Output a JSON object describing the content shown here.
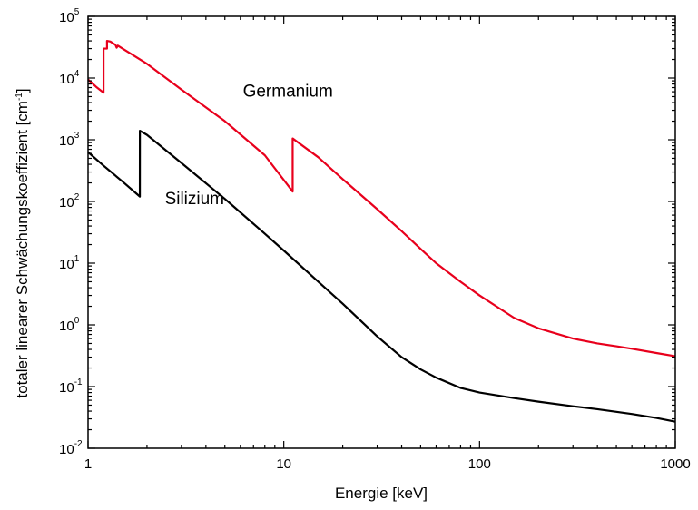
{
  "chart_data": {
    "type": "line",
    "xlabel": "Energie [keV]",
    "ylabel": "totaler linearer Schwächungskoeffizient [cm",
    "ylabel_sup": "-1",
    "ylabel_suffix": "]",
    "x_scale": "log",
    "y_scale": "log",
    "xlim": [
      1,
      1000
    ],
    "ylim": [
      0.01,
      100000
    ],
    "x_ticks": [
      {
        "value": 1,
        "label": "1"
      },
      {
        "value": 10,
        "label": "10"
      },
      {
        "value": 100,
        "label": "100"
      },
      {
        "value": 1000,
        "label": "1000"
      }
    ],
    "y_ticks": [
      {
        "value": 0.01,
        "base": "10",
        "exp": "-2"
      },
      {
        "value": 0.1,
        "base": "10",
        "exp": "-1"
      },
      {
        "value": 1,
        "base": "10",
        "exp": "0"
      },
      {
        "value": 10,
        "base": "10",
        "exp": "1"
      },
      {
        "value": 100,
        "base": "10",
        "exp": "2"
      },
      {
        "value": 1000,
        "base": "10",
        "exp": "3"
      },
      {
        "value": 10000,
        "base": "10",
        "exp": "4"
      },
      {
        "value": 100000,
        "base": "10",
        "exp": "5"
      }
    ],
    "grid": false,
    "legend": "none",
    "series": [
      {
        "name": "Germanium",
        "color": "#e8001c",
        "points": [
          [
            1,
            9500
          ],
          [
            1.1,
            7200
          ],
          [
            1.2,
            5800
          ],
          [
            1.2,
            30000
          ],
          [
            1.25,
            30000
          ],
          [
            1.25,
            40000
          ],
          [
            1.3,
            39000
          ],
          [
            1.38,
            34500
          ],
          [
            1.4,
            31000
          ],
          [
            1.42,
            33500
          ],
          [
            1.5,
            30000
          ],
          [
            2,
            17000
          ],
          [
            3,
            6500
          ],
          [
            5,
            2000
          ],
          [
            8,
            560
          ],
          [
            11.1,
            145
          ],
          [
            11.1,
            1050
          ],
          [
            15,
            520
          ],
          [
            20,
            230
          ],
          [
            30,
            75
          ],
          [
            40,
            33
          ],
          [
            50,
            17
          ],
          [
            60,
            10
          ],
          [
            80,
            5
          ],
          [
            100,
            3
          ],
          [
            150,
            1.3
          ],
          [
            200,
            0.88
          ],
          [
            300,
            0.6
          ],
          [
            400,
            0.5
          ],
          [
            500,
            0.45
          ],
          [
            600,
            0.41
          ],
          [
            800,
            0.35
          ],
          [
            1000,
            0.31
          ]
        ]
      },
      {
        "name": "Silizium",
        "color": "#000000",
        "points": [
          [
            1,
            630
          ],
          [
            1.2,
            380
          ],
          [
            1.5,
            210
          ],
          [
            1.839,
            120
          ],
          [
            1.84,
            1400
          ],
          [
            2,
            1200
          ],
          [
            3,
            420
          ],
          [
            5,
            110
          ],
          [
            8,
            30
          ],
          [
            10,
            16
          ],
          [
            15,
            5
          ],
          [
            20,
            2.2
          ],
          [
            30,
            0.65
          ],
          [
            40,
            0.3
          ],
          [
            50,
            0.19
          ],
          [
            60,
            0.14
          ],
          [
            80,
            0.095
          ],
          [
            100,
            0.08
          ],
          [
            150,
            0.065
          ],
          [
            200,
            0.057
          ],
          [
            300,
            0.048
          ],
          [
            400,
            0.043
          ],
          [
            500,
            0.039
          ],
          [
            600,
            0.036
          ],
          [
            800,
            0.031
          ],
          [
            1000,
            0.027
          ]
        ]
      }
    ],
    "annotations": [
      {
        "text": "Germanium",
        "x": 10.5,
        "y": 5000
      },
      {
        "text": "Silizium",
        "x": 3.5,
        "y": 90
      }
    ]
  }
}
